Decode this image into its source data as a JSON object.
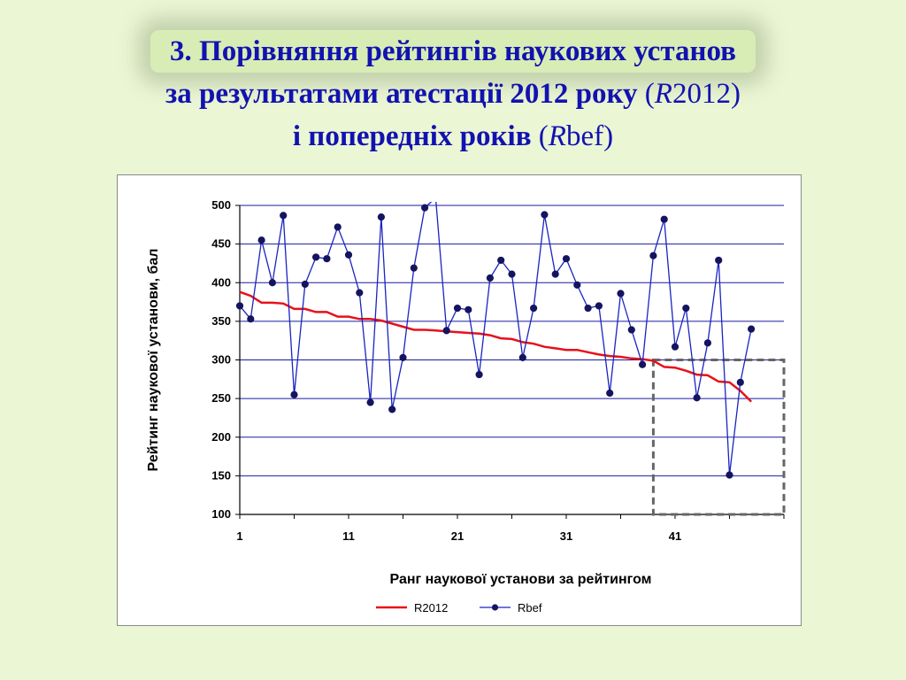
{
  "slide": {
    "title_line1": "3. Порівняння рейтингів наукових установ",
    "title_line2_bold": "за результатами атестації 2012 року",
    "title_line2_open": " (",
    "title_line2_italic": "R",
    "title_line2_rest": "2012)",
    "title_line3_bold": "і попередніх років",
    "title_line3_open": " (",
    "title_line3_italic": "R",
    "title_line3_rest": "bef)"
  },
  "chart_data": {
    "type": "line",
    "xlabel": "Ранг наукової установи за рейтингом",
    "ylabel": "Рейтинг наукової установи, бал",
    "xlim": [
      1,
      51
    ],
    "ylim": [
      100,
      500
    ],
    "x_ticks": [
      "1",
      "11",
      "21",
      "31",
      "41"
    ],
    "y_ticks": [
      "100",
      "150",
      "200",
      "250",
      "300",
      "350",
      "400",
      "450",
      "500"
    ],
    "grid": "horizontal",
    "legend_position": "bottom",
    "highlight_box": {
      "x": [
        39,
        51
      ],
      "y": [
        100,
        300
      ],
      "style": "dashed"
    },
    "colors": {
      "R2012": "#e8101a",
      "Rbef": "#1a24c0",
      "grid": "#1a1aa0"
    },
    "series": [
      {
        "name": "R2012",
        "marker": "none",
        "x": [
          1,
          2,
          3,
          4,
          5,
          6,
          7,
          8,
          9,
          10,
          11,
          12,
          13,
          14,
          15,
          16,
          17,
          18,
          19,
          20,
          21,
          22,
          23,
          24,
          25,
          26,
          27,
          28,
          29,
          30,
          31,
          32,
          33,
          34,
          35,
          36,
          37,
          38,
          39,
          40,
          41,
          42,
          43,
          44,
          45,
          46,
          47,
          48
        ],
        "values": [
          388,
          383,
          374,
          374,
          373,
          366,
          366,
          362,
          362,
          356,
          356,
          353,
          353,
          351,
          347,
          343,
          339,
          339,
          338,
          337,
          336,
          335,
          334,
          332,
          328,
          327,
          323,
          321,
          317,
          315,
          313,
          313,
          310,
          307,
          305,
          304,
          302,
          301,
          299,
          291,
          290,
          286,
          281,
          280,
          272,
          271,
          260,
          246
        ]
      },
      {
        "name": "Rbef",
        "marker": "circle",
        "x": [
          1,
          2,
          3,
          4,
          5,
          6,
          7,
          8,
          9,
          10,
          11,
          12,
          13,
          14,
          15,
          16,
          17,
          18,
          19,
          20,
          21,
          22,
          23,
          24,
          25,
          26,
          27,
          28,
          29,
          30,
          31,
          32,
          33,
          34,
          35,
          36,
          37,
          38,
          39,
          40,
          41,
          42,
          43,
          44,
          45,
          46,
          47,
          48
        ],
        "values": [
          370,
          353,
          455,
          400,
          487,
          255,
          398,
          433,
          431,
          472,
          436,
          387,
          245,
          485,
          236,
          303,
          419,
          497,
          510,
          338,
          367,
          365,
          281,
          406,
          429,
          411,
          303,
          367,
          488,
          411,
          431,
          397,
          367,
          370,
          257,
          386,
          339,
          294,
          435,
          482,
          317,
          367,
          251,
          322,
          429,
          151,
          271,
          340
        ]
      }
    ]
  }
}
